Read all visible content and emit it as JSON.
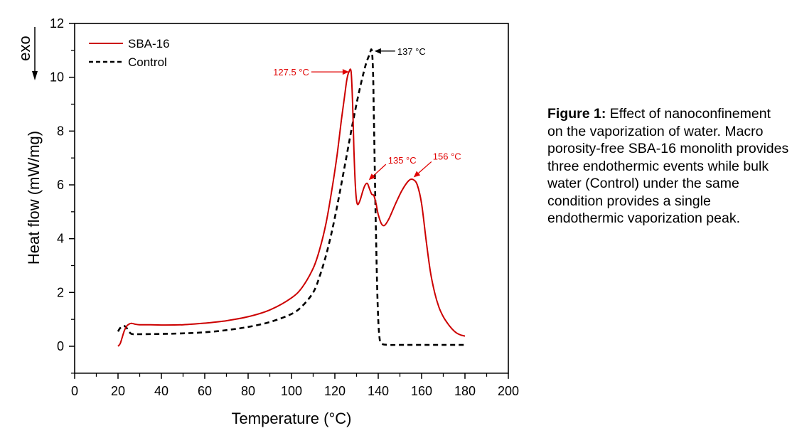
{
  "chart_data": {
    "type": "line",
    "title": "",
    "xlabel": "Temperature (°C)",
    "ylabel": "Heat flow (mW/mg)",
    "direction_label": "exo",
    "xlim": [
      0,
      200
    ],
    "ylim": [
      -1,
      12
    ],
    "x_ticks": [
      0,
      20,
      40,
      60,
      80,
      100,
      120,
      140,
      160,
      180,
      200
    ],
    "y_ticks": [
      0,
      2,
      4,
      6,
      8,
      10,
      12
    ],
    "grid": false,
    "legend_position": "top-left",
    "colors": {
      "SBA-16": "#cc0000",
      "Control": "#000000",
      "annotation_red": "#e00000"
    },
    "series": [
      {
        "name": "SBA-16",
        "style": "solid",
        "x": [
          20,
          21,
          22,
          23,
          24,
          25,
          26,
          27,
          28,
          30,
          35,
          40,
          50,
          60,
          70,
          80,
          90,
          100,
          105,
          110,
          113,
          116,
          119,
          121,
          123,
          124.5,
          125.5,
          126.5,
          127.5,
          128.2,
          128.8,
          129.5,
          130.3,
          131.5,
          133,
          134,
          135,
          136,
          137,
          138,
          139,
          140,
          141.5,
          143,
          145,
          148,
          151,
          154,
          156,
          158,
          160,
          162,
          164,
          166,
          168,
          170,
          172,
          174,
          176,
          178,
          180
        ],
        "y": [
          0.0,
          0.1,
          0.35,
          0.6,
          0.75,
          0.82,
          0.85,
          0.84,
          0.82,
          0.8,
          0.8,
          0.79,
          0.8,
          0.86,
          0.95,
          1.1,
          1.35,
          1.8,
          2.2,
          2.9,
          3.6,
          4.6,
          6.0,
          7.1,
          8.4,
          9.3,
          9.9,
          10.2,
          10.2,
          9.0,
          7.3,
          5.9,
          5.3,
          5.4,
          5.8,
          6.0,
          6.05,
          5.85,
          5.65,
          5.6,
          5.3,
          4.9,
          4.55,
          4.5,
          4.75,
          5.3,
          5.8,
          6.15,
          6.2,
          6.0,
          5.3,
          4.0,
          2.8,
          2.0,
          1.45,
          1.1,
          0.85,
          0.65,
          0.5,
          0.42,
          0.38
        ]
      },
      {
        "name": "Control",
        "style": "dashed",
        "x": [
          20,
          21,
          22,
          23,
          24,
          25,
          26,
          27,
          30,
          40,
          50,
          60,
          70,
          80,
          90,
          100,
          105,
          110,
          113,
          116,
          119,
          122,
          125,
          128,
          131,
          134,
          136,
          137,
          137.6,
          138,
          138.5,
          139,
          139.5,
          140,
          140.5,
          141,
          142,
          143,
          145,
          150,
          160,
          170,
          180
        ],
        "y": [
          0.55,
          0.68,
          0.75,
          0.75,
          0.68,
          0.55,
          0.47,
          0.45,
          0.45,
          0.46,
          0.48,
          0.52,
          0.6,
          0.72,
          0.9,
          1.2,
          1.5,
          2.0,
          2.6,
          3.4,
          4.4,
          5.6,
          6.9,
          8.2,
          9.4,
          10.4,
          10.85,
          11.0,
          10.2,
          8.5,
          6.2,
          4.0,
          2.2,
          1.0,
          0.4,
          0.15,
          0.08,
          0.06,
          0.05,
          0.05,
          0.05,
          0.05,
          0.05
        ]
      }
    ],
    "annotations": [
      {
        "text": "127.5 °C",
        "series": "SBA-16",
        "x": 127.5,
        "y": 10.2,
        "color": "red"
      },
      {
        "text": "135 °C",
        "series": "SBA-16",
        "x": 135,
        "y": 6.05,
        "color": "red"
      },
      {
        "text": "156 °C",
        "series": "SBA-16",
        "x": 156,
        "y": 6.2,
        "color": "red"
      },
      {
        "text": "137 °C",
        "series": "Control",
        "x": 137,
        "y": 11.0,
        "color": "black"
      }
    ]
  },
  "caption": {
    "label": "Figure 1:",
    "text": " Effect of nanoconfinement on the vaporization of water. Macro porosity-free SBA-16 monolith provides three endothermic events while bulk water (Control) under the same condition provides a single endothermic vaporization peak."
  }
}
